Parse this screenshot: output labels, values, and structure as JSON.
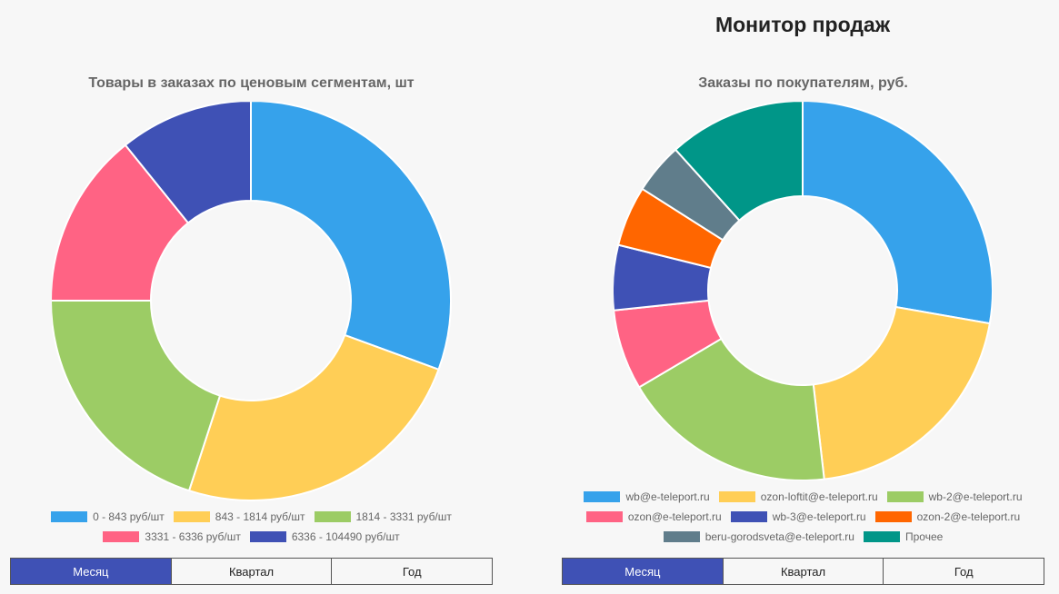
{
  "page_title": "Монитор продаж",
  "chart_data": [
    {
      "type": "pie",
      "donut": true,
      "title": "Товары в заказах по ценовым сегментам, шт",
      "categories": [
        "0 - 843 руб/шт",
        "843 - 1814 руб/шт",
        "1814 - 3331 руб/шт",
        "3331 - 6336 руб/шт",
        "6336 - 104490 руб/шт"
      ],
      "values": [
        30.6,
        24.4,
        20.0,
        14.2,
        10.8
      ],
      "colors": [
        "#36a2eb",
        "#ffce56",
        "#9ccc65",
        "#ff6384",
        "#3f51b5"
      ],
      "legend_position": "bottom"
    },
    {
      "type": "pie",
      "donut": true,
      "title": "Заказы по покупателям, руб.",
      "categories": [
        "wb@e-teleport.ru",
        "ozon-loftit@e-teleport.ru",
        "wb-2@e-teleport.ru",
        "ozon@e-teleport.ru",
        "wb-3@e-teleport.ru",
        "ozon-2@e-teleport.ru",
        "beru-gorodsveta@e-teleport.ru",
        "Прочее"
      ],
      "values": [
        27.6,
        20.3,
        18.2,
        6.8,
        5.5,
        5.1,
        4.3,
        11.6
      ],
      "colors": [
        "#36a2eb",
        "#ffce56",
        "#9ccc65",
        "#ff6384",
        "#3f51b5",
        "#ff6600",
        "#607d8b",
        "#009688"
      ],
      "legend_position": "bottom"
    }
  ],
  "left_tabs": {
    "month": "Месяц",
    "quarter": "Квартал",
    "year": "Год",
    "active": "month"
  },
  "right_tabs": {
    "month": "Месяц",
    "quarter": "Квартал",
    "year": "Год",
    "active": "month"
  }
}
